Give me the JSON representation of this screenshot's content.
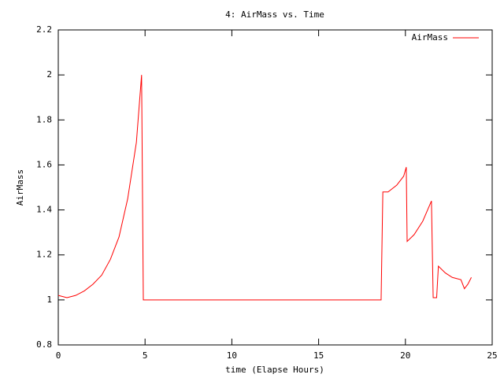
{
  "chart_data": {
    "type": "line",
    "title": "4: AirMass vs. Time",
    "x_label": "time (Elapse Hours)",
    "y_label": "AirMass",
    "x": [
      0,
      0.5,
      1,
      1.5,
      2,
      2.5,
      3,
      3.5,
      4,
      4.5,
      4.8,
      4.9,
      18.6,
      18.7,
      19,
      19.5,
      19.9,
      20.05,
      20.1,
      20.5,
      21,
      21.5,
      21.6,
      21.8,
      21.9,
      22.3,
      22.7,
      23.2,
      23.4,
      23.6,
      23.8
    ],
    "series": [
      {
        "name": "AirMass",
        "color": "#ff0000",
        "values": [
          1.02,
          1.01,
          1.02,
          1.04,
          1.07,
          1.11,
          1.18,
          1.28,
          1.45,
          1.7,
          2.0,
          1.0,
          1.0,
          1.48,
          1.48,
          1.51,
          1.55,
          1.59,
          1.26,
          1.29,
          1.35,
          1.44,
          1.01,
          1.01,
          1.15,
          1.12,
          1.1,
          1.09,
          1.05,
          1.07,
          1.1
        ]
      }
    ],
    "xlim": [
      0,
      25
    ],
    "xticks": [
      0,
      5,
      10,
      15,
      20,
      25
    ],
    "ylim": [
      0.8,
      2.2
    ],
    "yticks": [
      0.8,
      1,
      1.2,
      1.4,
      1.6,
      1.8,
      2,
      2.2
    ],
    "legend": "top-right"
  }
}
